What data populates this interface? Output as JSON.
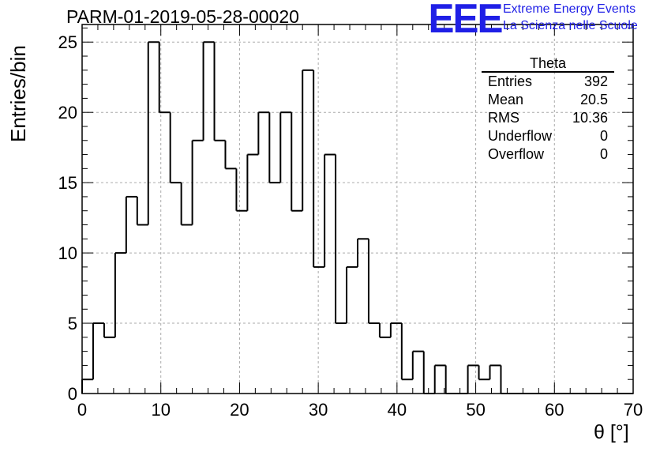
{
  "title": "PARM-01-2019-05-28-00020",
  "logo": {
    "mark": "EEE",
    "line1": "Extreme Energy Events",
    "line2": "La Scienza nelle Scuole",
    "color": "#1f1fe6"
  },
  "stats_box": {
    "title": "Theta",
    "rows": [
      {
        "label": "Entries",
        "value": "392"
      },
      {
        "label": "Mean",
        "value": "20.5"
      },
      {
        "label": "RMS",
        "value": "10.36"
      },
      {
        "label": "Underflow",
        "value": "0"
      },
      {
        "label": "Overflow",
        "value": "0"
      }
    ]
  },
  "chart_data": {
    "type": "histogram",
    "title": "PARM-01-2019-05-28-00020",
    "xlabel": "θ [°]",
    "ylabel": "Entries/bin",
    "xlim": [
      0,
      70
    ],
    "ylim": [
      0,
      26.25
    ],
    "bin_width": 1.4,
    "x_ticks": [
      0,
      10,
      20,
      30,
      40,
      50,
      60,
      70
    ],
    "y_ticks": [
      0,
      5,
      10,
      15,
      20,
      25
    ],
    "grid": true,
    "bin_edges_start": 0,
    "values": [
      1,
      5,
      4,
      10,
      14,
      12,
      25,
      20,
      15,
      12,
      18,
      25,
      18,
      16,
      13,
      17,
      20,
      15,
      20,
      13,
      23,
      9,
      17,
      5,
      9,
      11,
      5,
      4,
      5,
      1,
      3,
      0,
      2,
      0,
      0,
      2,
      1,
      2,
      0,
      0,
      0,
      0,
      0,
      0,
      0,
      0,
      0,
      0,
      0,
      0
    ]
  }
}
